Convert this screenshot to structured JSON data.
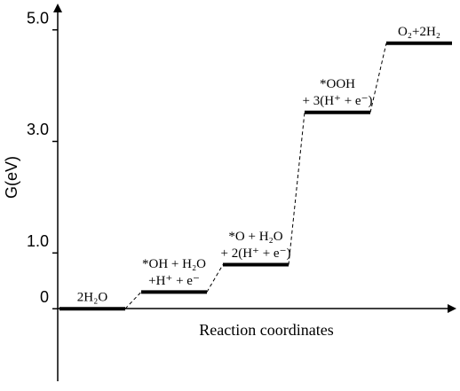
{
  "chart_data": {
    "type": "energy-levels",
    "ylabel": "G(eV)",
    "xlabel": "Reaction coordinates",
    "categories": [
      [
        "2H₂O"
      ],
      [
        "*OH + H₂O",
        "+H⁺ + e⁻"
      ],
      [
        "*O + H₂O",
        "+ 2(H⁺ + e⁻)"
      ],
      [
        "*OOH",
        "+ 3(H⁺ + e⁻)"
      ],
      [
        "O₂+2H₂"
      ]
    ],
    "values": [
      0,
      0.3,
      0.79,
      3.52,
      4.76
    ],
    "color": "#000000",
    "ylim": [
      -1.3,
      5.44
    ],
    "yticks": [
      0,
      {
        "value": 1,
        "label": "1.0"
      },
      {
        "value": 3,
        "label": "3.0"
      },
      {
        "value": 5,
        "label": "5.0"
      }
    ]
  }
}
